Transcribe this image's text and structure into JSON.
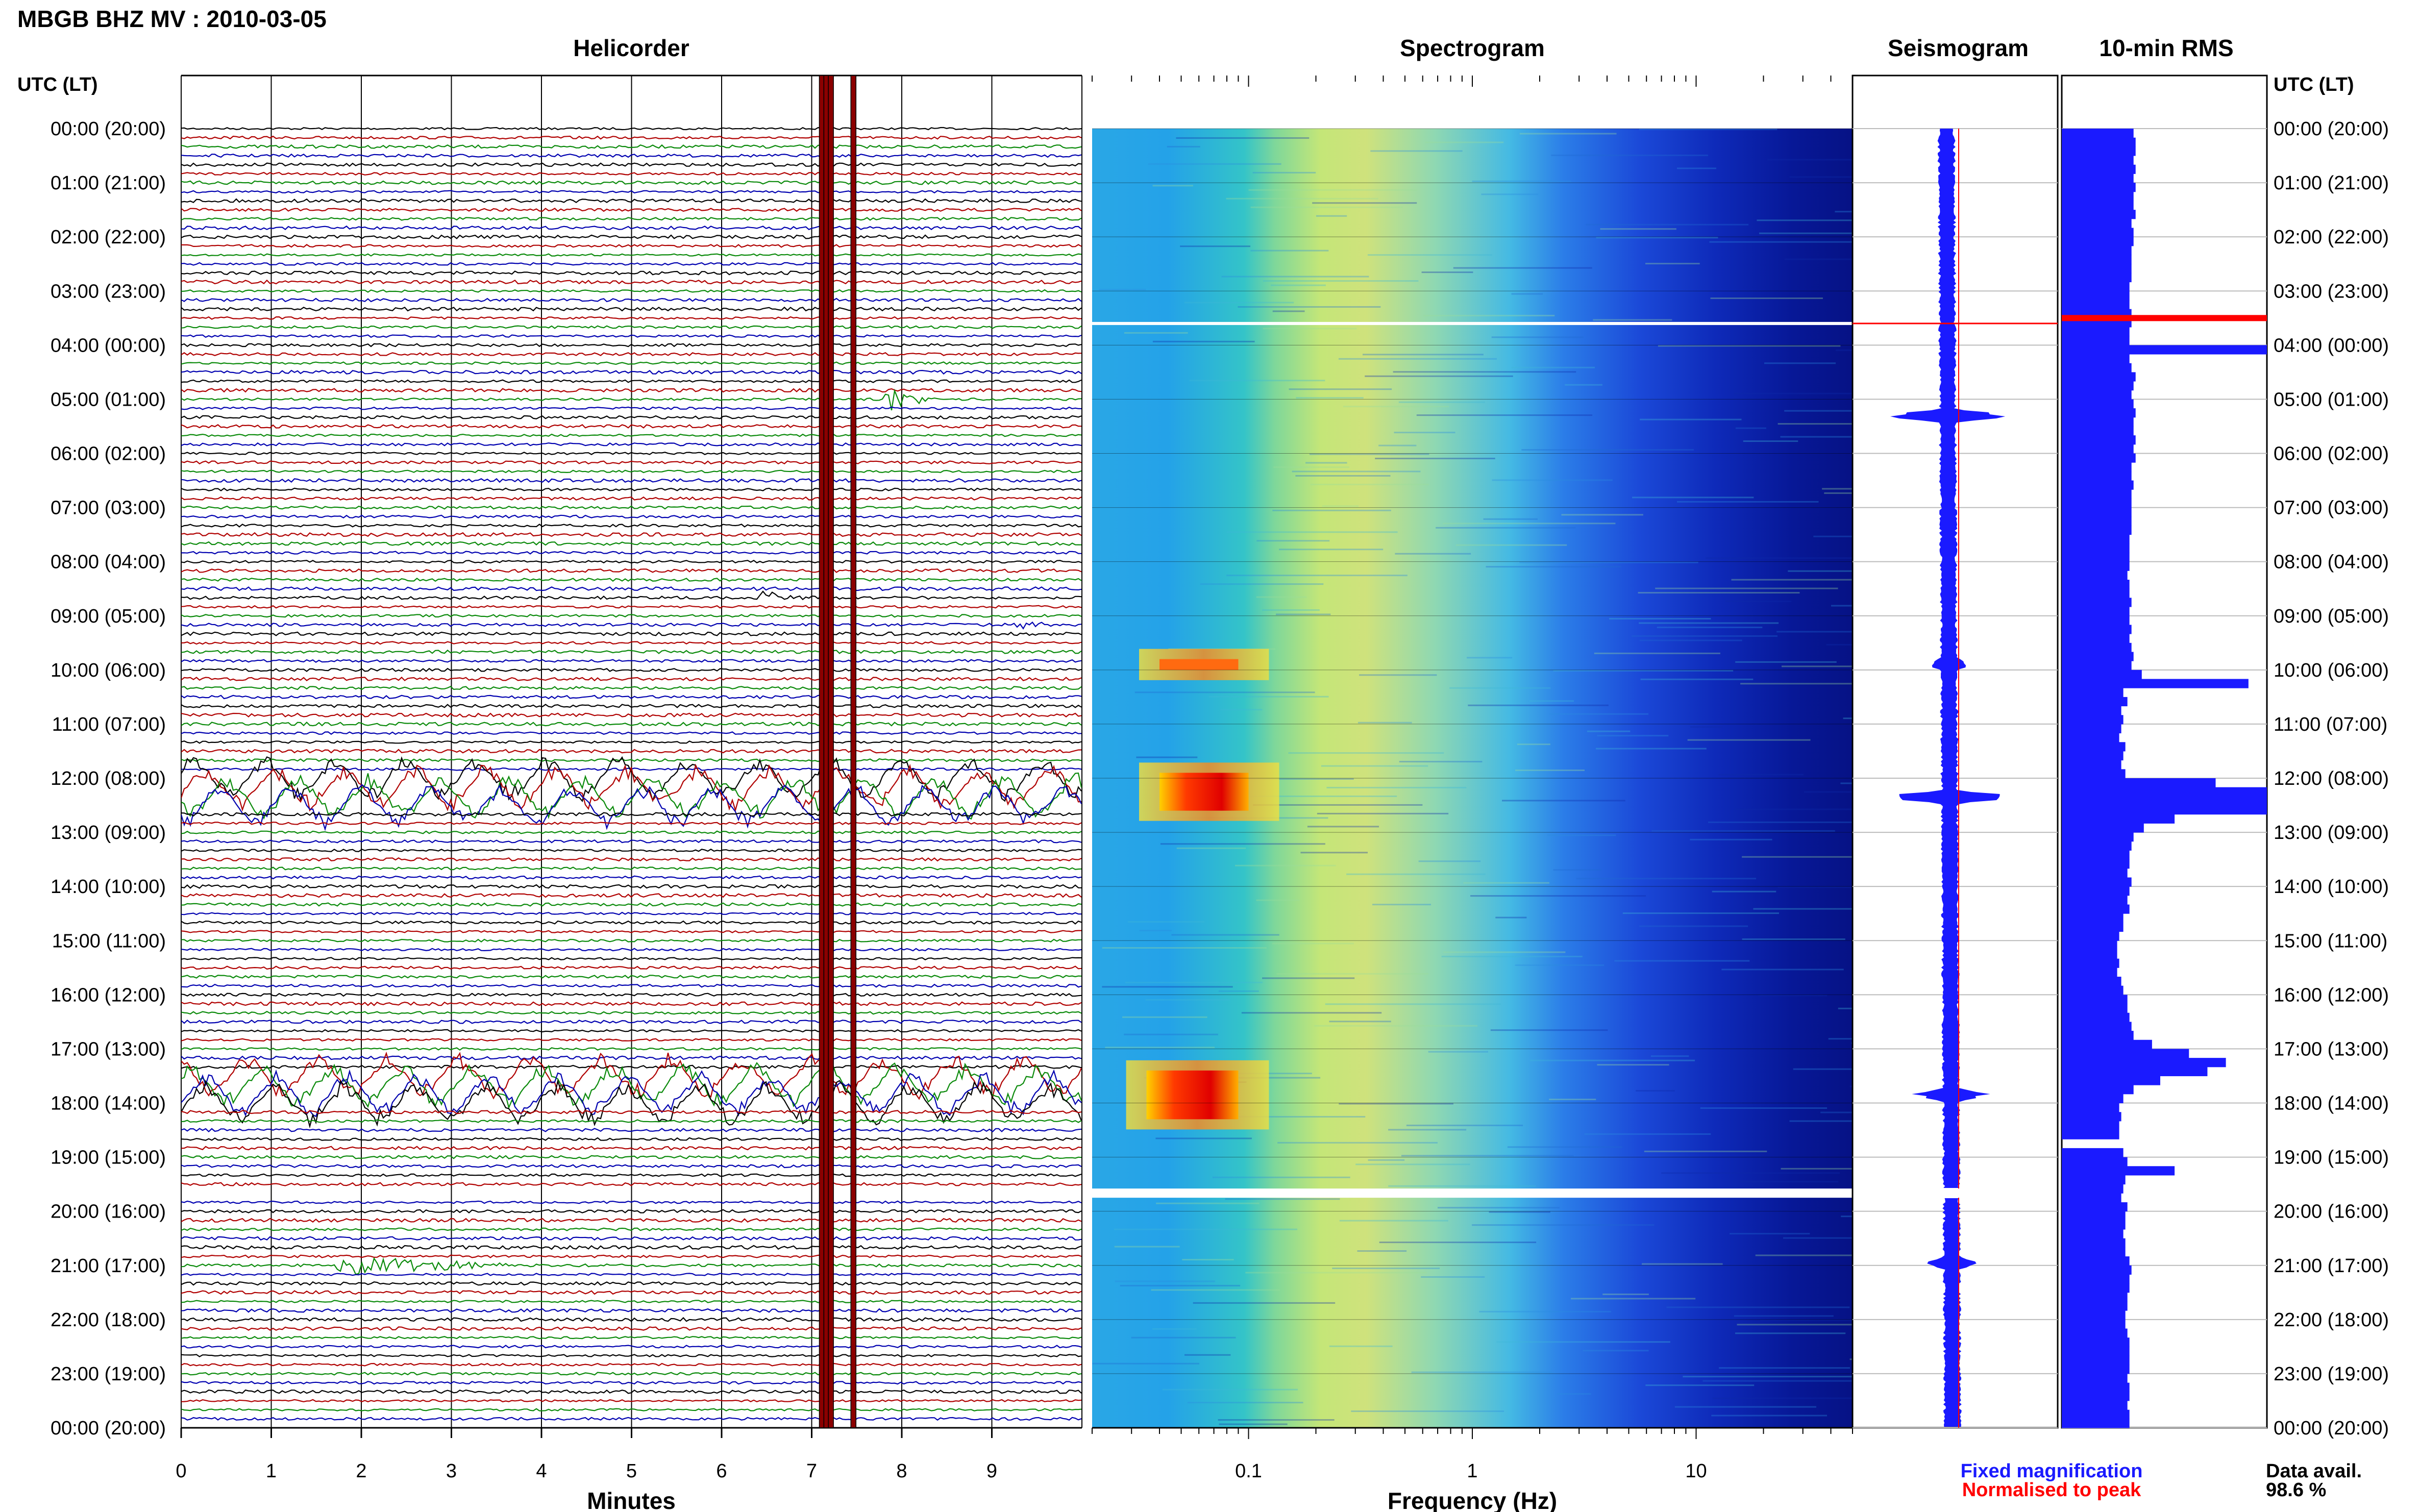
{
  "title": "MBGB BHZ MV : 2010-03-05",
  "panels": {
    "helicorder": "Helicorder",
    "spectrogram": "Spectrogram",
    "seismogram": "Seismogram",
    "rms": "10-min RMS"
  },
  "time_axis_header": "UTC (LT)",
  "hour_labels": [
    "00:00 (20:00)",
    "01:00 (21:00)",
    "02:00 (22:00)",
    "03:00 (23:00)",
    "04:00 (00:00)",
    "05:00 (01:00)",
    "06:00 (02:00)",
    "07:00 (03:00)",
    "08:00 (04:00)",
    "09:00 (05:00)",
    "10:00 (06:00)",
    "11:00 (07:00)",
    "12:00 (08:00)",
    "13:00 (09:00)",
    "14:00 (10:00)",
    "15:00 (11:00)",
    "16:00 (12:00)",
    "17:00 (13:00)",
    "18:00 (14:00)",
    "19:00 (15:00)",
    "20:00 (16:00)",
    "21:00 (17:00)",
    "22:00 (18:00)",
    "23:00 (19:00)",
    "00:00 (20:00)"
  ],
  "footer": {
    "fixed": "Fixed magnification",
    "normalised": "Normalised to peak",
    "avail_label": "Data avail.",
    "avail_value": "98.6 %"
  },
  "colors": {
    "trace": [
      "#000000",
      "#b00000",
      "#0a8a0a",
      "#0000b0"
    ],
    "helicorder_marker": "#8b0000",
    "seismogram_fill": "#1a1aff",
    "rms_fill": "#1a1aff",
    "rms_peak": "#ff0000"
  },
  "chart_data": [
    {
      "type": "line",
      "name": "Helicorder",
      "xlabel": "Minutes",
      "x_ticks": [
        "0",
        "1",
        "2",
        "3",
        "4",
        "5",
        "6",
        "7",
        "8",
        "9"
      ],
      "xlim": [
        0,
        10
      ],
      "y_range_hours": [
        0,
        24
      ],
      "rows_per_hour": 6,
      "events": [
        {
          "hour": 4.98,
          "minute": 7.8,
          "duration_min": 0.6,
          "amplitude": 0.9
        },
        {
          "hour": 8.67,
          "minute": 6.4,
          "duration_min": 0.8,
          "amplitude": 0.4
        },
        {
          "hour": 9.2,
          "minute": 9.2,
          "duration_min": 0.6,
          "amplitude": 0.3
        },
        {
          "hour": 20.97,
          "minute": 1.7,
          "duration_min": 2.2,
          "amplitude": 0.6
        }
      ],
      "high_amplitude_hours": [
        [
          11.9,
          12.5
        ],
        [
          17.4,
          18.0
        ]
      ],
      "data_gap_hours": [
        19.58,
        19.75
      ],
      "marker_minutes": [
        7.0,
        7.05,
        7.1,
        7.35
      ]
    },
    {
      "type": "heatmap",
      "name": "Spectrogram",
      "xlabel": "Frequency (Hz)",
      "x_ticks": [
        "0.1",
        "1",
        "10"
      ],
      "xscale": "log",
      "xlim": [
        0.02,
        50
      ],
      "y_range_hours": [
        0,
        24
      ],
      "colormap": "jet",
      "hot_spots": [
        {
          "hours": [
            9.8,
            10.0
          ],
          "freq_hz": [
            0.04,
            0.09
          ],
          "level": "orange-red"
        },
        {
          "hours": [
            11.9,
            12.6
          ],
          "freq_hz": [
            0.04,
            0.1
          ],
          "level": "red"
        },
        {
          "hours": [
            17.4,
            18.3
          ],
          "freq_hz": [
            0.035,
            0.09
          ],
          "level": "red"
        }
      ],
      "data_gap_hours": [
        19.58,
        19.75
      ]
    },
    {
      "type": "area",
      "name": "Seismogram",
      "y_range_hours": [
        0,
        24
      ],
      "spikes": [
        {
          "hour": 5.3,
          "width": 0.9
        },
        {
          "hour": 9.9,
          "width": 0.2
        },
        {
          "hour": 12.35,
          "width": 1.0
        },
        {
          "hour": 17.85,
          "width": 0.4
        },
        {
          "hour": 20.95,
          "width": 0.3
        }
      ],
      "normalised_marker_hour": 3.6,
      "data_gap_hours": [
        19.58,
        19.75
      ]
    },
    {
      "type": "bar",
      "name": "10-min RMS",
      "orientation": "horizontal",
      "interval_minutes": 10,
      "values": [
        0.35,
        0.36,
        0.36,
        0.35,
        0.36,
        0.35,
        0.36,
        0.35,
        0.35,
        0.36,
        0.34,
        0.35,
        0.35,
        0.34,
        0.34,
        0.34,
        0.34,
        0.33,
        0.33,
        0.33,
        0.34,
        0.34,
        0.33,
        0.33,
        1.0,
        0.33,
        0.34,
        0.36,
        0.35,
        0.34,
        0.35,
        0.36,
        0.35,
        0.35,
        0.36,
        0.35,
        0.36,
        0.34,
        0.34,
        0.35,
        0.34,
        0.34,
        0.34,
        0.34,
        0.34,
        0.33,
        0.33,
        0.33,
        0.33,
        0.32,
        0.33,
        0.33,
        0.34,
        0.33,
        0.33,
        0.34,
        0.33,
        0.34,
        0.35,
        0.34,
        0.39,
        0.91,
        0.3,
        0.32,
        0.29,
        0.3,
        0.29,
        0.28,
        0.31,
        0.3,
        0.29,
        0.31,
        0.75,
        1.0,
        1.0,
        1.0,
        0.55,
        0.4,
        0.35,
        0.34,
        0.33,
        0.33,
        0.32,
        0.34,
        0.33,
        0.32,
        0.33,
        0.3,
        0.3,
        0.28,
        0.27,
        0.27,
        0.28,
        0.27,
        0.29,
        0.3,
        0.32,
        0.32,
        0.33,
        0.34,
        0.35,
        0.44,
        0.62,
        0.8,
        0.71,
        0.48,
        0.35,
        0.3,
        0.28,
        0.29,
        0.28,
        0.28,
        null,
        0.3,
        0.32,
        0.55,
        0.31,
        0.3,
        0.29,
        0.32,
        0.31,
        0.31,
        0.3,
        0.31,
        0.31,
        0.33,
        0.34,
        0.33,
        0.33,
        0.32,
        0.32,
        0.31,
        0.31,
        0.32,
        0.33,
        0.33,
        0.33,
        0.33,
        0.32,
        0.33,
        0.33,
        0.32,
        0.33,
        0.33
      ],
      "peak_hour": 3.5
    }
  ]
}
